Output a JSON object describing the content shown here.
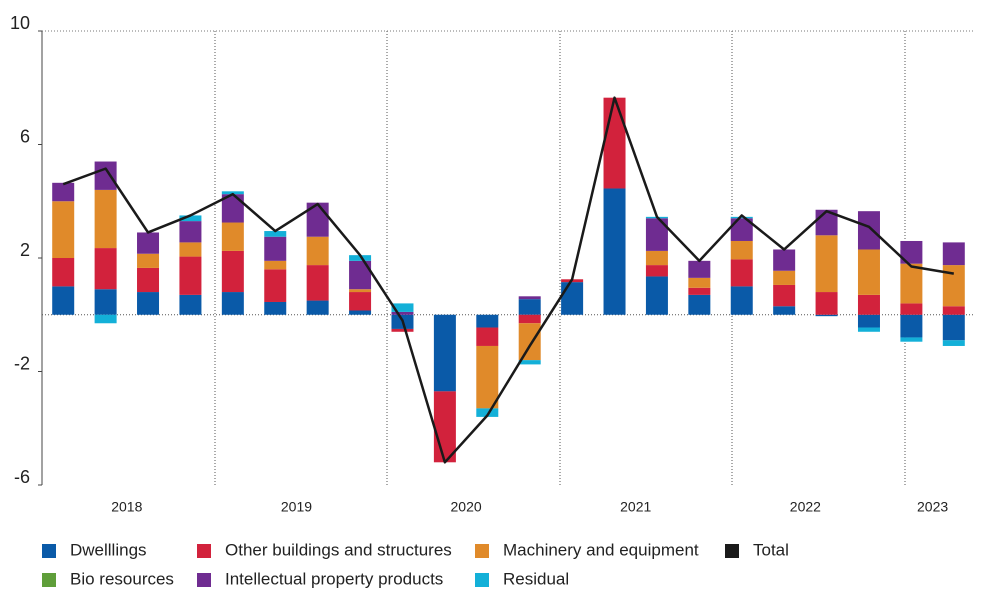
{
  "chart_data": {
    "type": "stacked_bar_line",
    "categories": [
      "2018",
      null,
      null,
      null,
      "2019",
      null,
      null,
      null,
      "2020",
      null,
      null,
      null,
      "2021",
      null,
      null,
      null,
      "2022",
      null,
      null,
      null,
      "2023",
      null
    ],
    "series": [
      {
        "name": "Dwelllings",
        "color": "#0a5aa8",
        "values": [
          1.0,
          0.9,
          0.8,
          0.7,
          0.8,
          0.45,
          0.5,
          0.15,
          -0.5,
          -2.7,
          -0.45,
          0.55,
          1.15,
          4.45,
          1.35,
          0.7,
          1.0,
          0.3,
          -0.05,
          -0.45,
          -0.8,
          -0.9
        ]
      },
      {
        "name": "Other buildings and structures",
        "color": "#d2223c",
        "values": [
          1.0,
          1.45,
          0.85,
          1.35,
          1.45,
          1.15,
          1.25,
          0.65,
          -0.1,
          -2.5,
          -0.65,
          -0.3,
          0.1,
          3.2,
          0.4,
          0.25,
          0.95,
          0.75,
          0.8,
          0.7,
          0.4,
          0.3
        ]
      },
      {
        "name": "Machinery and equipment",
        "color": "#e08a2a",
        "values": [
          2.0,
          2.05,
          0.5,
          0.5,
          1.0,
          0.3,
          1.0,
          0.1,
          0,
          0,
          -2.2,
          -1.3,
          0,
          0,
          0.5,
          0.35,
          0.65,
          0.5,
          2.0,
          1.6,
          1.4,
          1.45
        ]
      },
      {
        "name": "Bio resources",
        "color": "#5f9e3a",
        "values": [
          0,
          0,
          0,
          0,
          0,
          0,
          0,
          0,
          0,
          0,
          0,
          0,
          0,
          0,
          0,
          0,
          0,
          0,
          0,
          0,
          0,
          0
        ]
      },
      {
        "name": "Intellectual property products",
        "color": "#6f2c91",
        "values": [
          0.65,
          1.0,
          0.75,
          0.75,
          1.0,
          0.85,
          1.2,
          1.0,
          0.1,
          0,
          0,
          0.1,
          0,
          0,
          1.15,
          0.6,
          0.8,
          0.75,
          0.9,
          1.35,
          0.8,
          0.8
        ]
      },
      {
        "name": "Residual",
        "color": "#13b0d8",
        "values": [
          0,
          -0.3,
          0,
          0.2,
          0.1,
          0.2,
          0,
          0.2,
          0.3,
          0,
          -0.3,
          -0.15,
          0,
          0,
          0.05,
          0,
          0.05,
          0,
          0,
          -0.15,
          -0.15,
          -0.2
        ]
      }
    ],
    "total": {
      "name": "Total",
      "color": "#1a1a1a",
      "values": [
        4.6,
        5.15,
        2.9,
        3.5,
        4.25,
        2.95,
        3.9,
        2.1,
        -0.2,
        -5.2,
        -3.55,
        -1.1,
        1.25,
        7.65,
        3.45,
        1.9,
        3.5,
        2.3,
        3.65,
        3.1,
        1.7,
        1.45
      ]
    },
    "ylim": [
      -6,
      10
    ],
    "yticks": [
      -6,
      -2,
      2,
      6,
      10
    ],
    "grid": false
  }
}
